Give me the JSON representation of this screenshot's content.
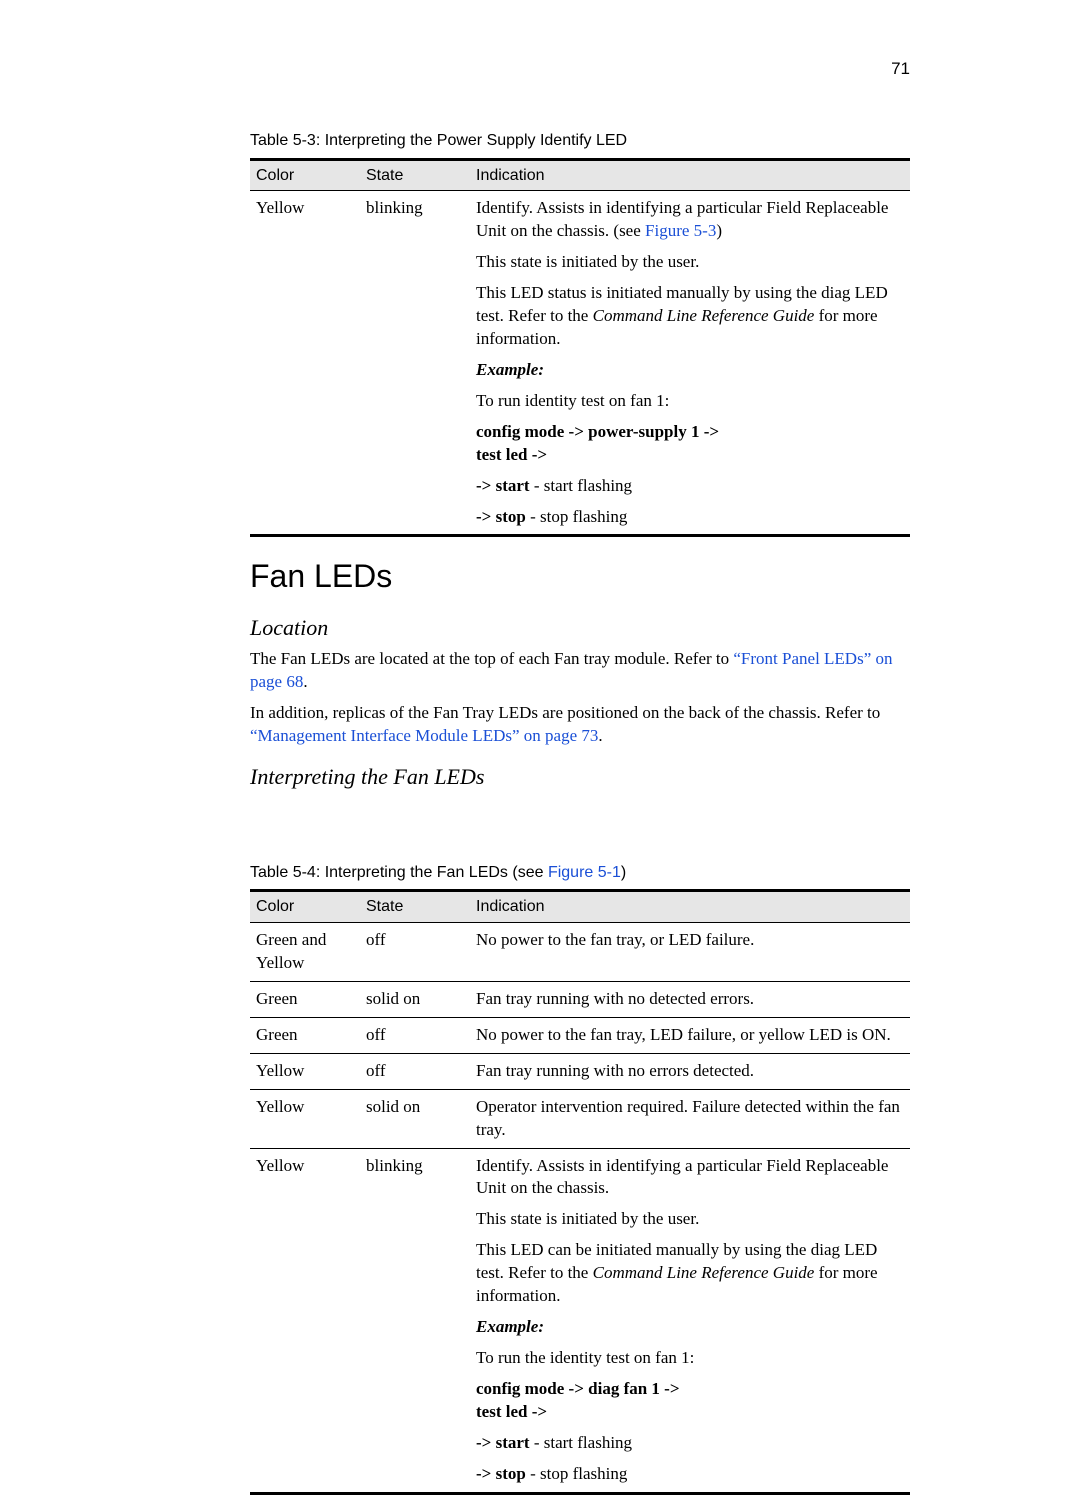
{
  "page_number": "71",
  "table53": {
    "caption": "Table 5-3: Interpreting the Power Supply Identify LED",
    "headers": {
      "c1": "Color",
      "c2": "State",
      "c3": "Indication"
    },
    "row": {
      "color": "Yellow",
      "state": "blinking",
      "p1a": "Identify. Assists in identifying a particular Field Replaceable Unit on the chassis. (see ",
      "p1link": "Figure 5-3",
      "p1b": ")",
      "p2": "This state is initiated by the user.",
      "p3a": "This LED status is initiated manually by using the diag LED test. Refer to the ",
      "p3i": "Command Line Reference Guide",
      "p3b": " for more information.",
      "example_label": "Example:",
      "p5": "To run identity test on fan 1:",
      "cmd1": "config mode -> power-supply 1 ->",
      "cmd2": "test led ->",
      "start_b": "-> start",
      "start_t": " - start flashing",
      "stop_b": "-> stop",
      "stop_t": " - stop flashing"
    }
  },
  "fanleds": {
    "heading": "Fan LEDs",
    "location_h": "Location",
    "loc1a": "The Fan LEDs are located at the top of each Fan tray module. Refer to ",
    "loc1link": "“Front Panel LEDs” on page 68",
    "loc1b": ".",
    "loc2a": "In addition, replicas of the Fan Tray LEDs are positioned on the back of the chassis. Refer to ",
    "loc2link": "“Management Interface Module LEDs” on page 73",
    "loc2b": ".",
    "interp_h": "Interpreting the Fan LEDs"
  },
  "table54": {
    "caption_a": "Table 5-4: Interpreting the Fan LEDs (see ",
    "caption_link": "Figure 5-1",
    "caption_b": ")",
    "headers": {
      "c1": "Color",
      "c2": "State",
      "c3": "Indication"
    },
    "rows": [
      {
        "color": "Green and Yellow",
        "state": "off",
        "ind": "No power to the fan tray, or LED failure."
      },
      {
        "color": "Green",
        "state": "solid on",
        "ind": "Fan tray running with no detected errors."
      },
      {
        "color": "Green",
        "state": "off",
        "ind": "No power to the fan tray, LED failure, or yellow LED is ON."
      },
      {
        "color": "Yellow",
        "state": "off",
        "ind": "Fan tray running with no errors detected."
      },
      {
        "color": "Yellow",
        "state": "solid on",
        "ind": "Operator intervention required. Failure detected within the fan tray."
      }
    ],
    "row6": {
      "color": "Yellow",
      "state": "blinking",
      "p1": "Identify. Assists in identifying a particular Field Replaceable Unit on the chassis.",
      "p2": "This state is initiated by the user.",
      "p3a": "This LED can be initiated manually by using the diag LED test. Refer to the ",
      "p3i": "Command Line Reference Guide",
      "p3b": " for more information.",
      "example_label": "Example:",
      "p5": "To run the identity test on fan 1:",
      "cmd1": "config mode -> diag fan 1 ->",
      "cmd2": "test led ->",
      "start_b": "-> start",
      "start_t": " - start flashing",
      "stop_b": "-> stop",
      "stop_t": " - stop flashing"
    }
  }
}
